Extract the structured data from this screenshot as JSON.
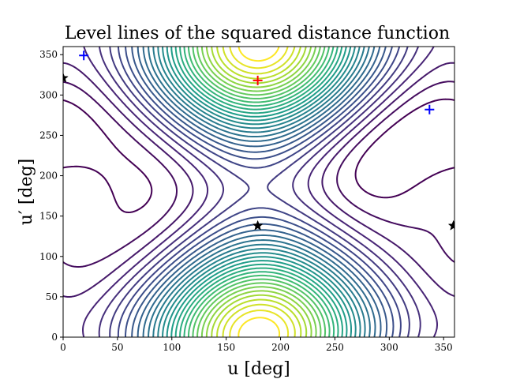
{
  "chart_data": {
    "type": "contour",
    "title": "Level lines of the squared distance function",
    "xlabel": "u [deg]",
    "ylabel": "u′ [deg]",
    "xlim": [
      0,
      360
    ],
    "ylim": [
      0,
      360
    ],
    "x_ticks": [
      0,
      50,
      100,
      150,
      200,
      250,
      300,
      350
    ],
    "y_ticks": [
      0,
      50,
      100,
      150,
      200,
      250,
      300,
      350
    ],
    "colormap": "viridis",
    "colors": {
      "cmap_low": "#440154",
      "cmap_mid": "#21918c",
      "cmap_high": "#fde725",
      "marker_red": "#ff0000",
      "marker_blue": "#0000ff",
      "marker_black": "#000000"
    },
    "markers": [
      {
        "type": "plus",
        "color": "red",
        "x": 179,
        "y": 318
      },
      {
        "type": "plus",
        "color": "blue",
        "x": 19,
        "y": 349
      },
      {
        "type": "plus",
        "color": "blue",
        "x": 337,
        "y": 282
      },
      {
        "type": "star",
        "color": "black",
        "x": 0,
        "y": 321
      },
      {
        "type": "star",
        "color": "black",
        "x": 179,
        "y": 138
      },
      {
        "type": "star",
        "color": "black",
        "x": 359,
        "y": 138
      }
    ]
  }
}
